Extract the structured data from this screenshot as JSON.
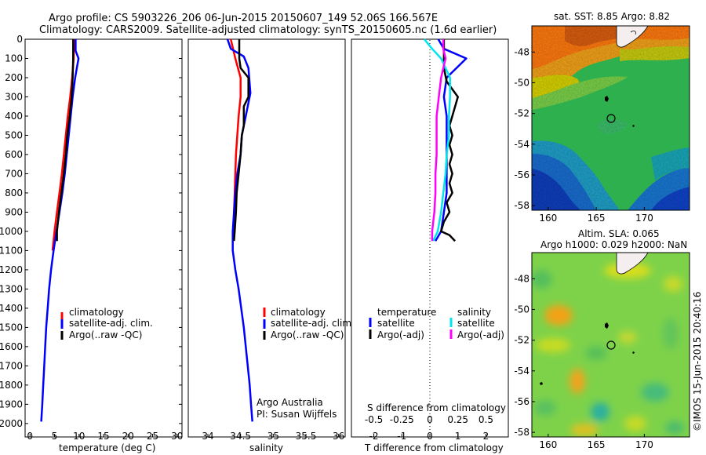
{
  "title": {
    "line1": "Argo profile: CS 5903226_206 06-Jun-2015 20150607_149 52.06S 166.567E",
    "line2": "Climatology: CARS2009. Satellite-adjusted climatology: synTS_20150605.nc (1.6d earlier)"
  },
  "colors": {
    "climatology": "#ff0000",
    "satellite": "#0000ff",
    "argo": "#000000",
    "sat_salinity": "#00e5ee",
    "argo_salinity": "#ff00ff"
  },
  "depth_axis": {
    "ticks": [
      "0",
      "100",
      "200",
      "300",
      "400",
      "500",
      "600",
      "700",
      "800",
      "900",
      "1000",
      "1100",
      "1200",
      "1300",
      "1400",
      "1500",
      "1600",
      "1700",
      "1800",
      "1900",
      "2000"
    ]
  },
  "chart_data": [
    {
      "type": "line",
      "xlabel": "temperature (deg C)",
      "ylabel": "",
      "xlim": [
        -1,
        31
      ],
      "ylim": [
        2070,
        0
      ],
      "xticks": [
        "0",
        "5",
        "10",
        "15",
        "20",
        "25",
        "30"
      ],
      "legend": [
        "climatology",
        "satellite-adj. clim.",
        "Argo(..raw -QC)"
      ],
      "series": [
        {
          "name": "climatology",
          "points": [
            [
              9.0,
              0
            ],
            [
              8.9,
              100
            ],
            [
              8.6,
              200
            ],
            [
              8.2,
              300
            ],
            [
              7.7,
              400
            ],
            [
              7.3,
              500
            ],
            [
              6.9,
              600
            ],
            [
              6.5,
              700
            ],
            [
              6.0,
              800
            ],
            [
              5.5,
              900
            ],
            [
              5.0,
              1000
            ],
            [
              4.6,
              1100
            ]
          ]
        },
        {
          "name": "satellite-adj. clim.",
          "points": [
            [
              9.3,
              0
            ],
            [
              9.3,
              60
            ],
            [
              9.9,
              100
            ],
            [
              9.2,
              200
            ],
            [
              8.7,
              300
            ],
            [
              8.3,
              400
            ],
            [
              7.9,
              500
            ],
            [
              7.5,
              600
            ],
            [
              7.1,
              700
            ],
            [
              6.6,
              800
            ],
            [
              6.0,
              900
            ],
            [
              5.4,
              1000
            ],
            [
              4.8,
              1100
            ],
            [
              4.3,
              1200
            ],
            [
              3.9,
              1300
            ],
            [
              3.6,
              1400
            ],
            [
              3.3,
              1500
            ],
            [
              3.1,
              1600
            ],
            [
              2.9,
              1700
            ],
            [
              2.7,
              1800
            ],
            [
              2.5,
              1900
            ],
            [
              2.3,
              1990
            ]
          ]
        },
        {
          "name": "Argo(..raw -QC)",
          "points": [
            [
              8.8,
              0
            ],
            [
              8.8,
              100
            ],
            [
              8.7,
              200
            ],
            [
              8.5,
              300
            ],
            [
              8.1,
              400
            ],
            [
              7.6,
              500
            ],
            [
              7.3,
              600
            ],
            [
              6.9,
              700
            ],
            [
              6.4,
              800
            ],
            [
              5.9,
              900
            ],
            [
              5.5,
              1000
            ],
            [
              5.5,
              1050
            ]
          ]
        }
      ]
    },
    {
      "type": "line",
      "xlabel": "salinity",
      "ylabel": "",
      "xlim": [
        33.7,
        36.1
      ],
      "ylim": [
        2070,
        0
      ],
      "xticks": [
        "34",
        "34.5",
        "35",
        "35.5",
        "36"
      ],
      "legend": [
        "climatology",
        "satellite-adj. clim.",
        "Argo(..raw -QC)"
      ],
      "annotation": [
        "Argo Australia",
        "PI: Susan Wijffels"
      ],
      "series": [
        {
          "name": "climatology",
          "points": [
            [
              34.35,
              0
            ],
            [
              34.42,
              100
            ],
            [
              34.5,
              200
            ],
            [
              34.5,
              300
            ],
            [
              34.47,
              400
            ],
            [
              34.45,
              500
            ],
            [
              34.43,
              600
            ],
            [
              34.42,
              700
            ],
            [
              34.41,
              800
            ],
            [
              34.4,
              900
            ],
            [
              34.4,
              1000
            ]
          ]
        },
        {
          "name": "satellite-adj. clim.",
          "points": [
            [
              34.3,
              0
            ],
            [
              34.35,
              50
            ],
            [
              34.55,
              90
            ],
            [
              34.62,
              150
            ],
            [
              34.65,
              280
            ],
            [
              34.58,
              400
            ],
            [
              34.52,
              500
            ],
            [
              34.5,
              600
            ],
            [
              34.45,
              700
            ],
            [
              34.42,
              800
            ],
            [
              34.4,
              900
            ],
            [
              34.38,
              1000
            ],
            [
              34.38,
              1100
            ],
            [
              34.42,
              1200
            ],
            [
              34.47,
              1300
            ],
            [
              34.51,
              1400
            ],
            [
              34.55,
              1500
            ],
            [
              34.58,
              1600
            ],
            [
              34.61,
              1700
            ],
            [
              34.64,
              1800
            ],
            [
              34.66,
              1900
            ],
            [
              34.68,
              1990
            ]
          ]
        },
        {
          "name": "Argo(..raw -QC)",
          "points": [
            [
              34.48,
              0
            ],
            [
              34.48,
              100
            ],
            [
              34.5,
              150
            ],
            [
              34.62,
              200
            ],
            [
              34.62,
              300
            ],
            [
              34.55,
              350
            ],
            [
              34.55,
              450
            ],
            [
              34.52,
              500
            ],
            [
              34.5,
              600
            ],
            [
              34.47,
              700
            ],
            [
              34.44,
              800
            ],
            [
              34.43,
              900
            ],
            [
              34.41,
              1000
            ],
            [
              34.4,
              1050
            ]
          ]
        }
      ]
    },
    {
      "type": "line",
      "xlabel": "T difference from climatology",
      "xlabel_top": "S difference from climatology",
      "ylabel": "",
      "xlim": [
        -2.8,
        2.8
      ],
      "ylim": [
        2070,
        0
      ],
      "xticks": [
        "-2",
        "-1",
        "0",
        "1",
        "2"
      ],
      "xticks_top": [
        "-0.5",
        "-0.25",
        "0",
        "0.25",
        "0.5"
      ],
      "legend_headers": [
        "temperature",
        "salinity"
      ],
      "legend": [
        "satellite",
        "Argo(-adj)",
        "satellite",
        "Argo(-adj)"
      ],
      "series": [
        {
          "name": "temperature satellite",
          "points": [
            [
              0.3,
              0
            ],
            [
              0.5,
              50
            ],
            [
              1.3,
              100
            ],
            [
              0.6,
              200
            ],
            [
              0.5,
              300
            ],
            [
              0.6,
              400
            ],
            [
              0.6,
              500
            ],
            [
              0.6,
              600
            ],
            [
              0.6,
              700
            ],
            [
              0.6,
              800
            ],
            [
              0.5,
              900
            ],
            [
              0.4,
              1000
            ],
            [
              0.2,
              1050
            ]
          ]
        },
        {
          "name": "temperature Argo(-adj)",
          "points": [
            [
              0.5,
              0
            ],
            [
              0.5,
              150
            ],
            [
              0.6,
              220
            ],
            [
              1.0,
              300
            ],
            [
              0.8,
              400
            ],
            [
              0.7,
              450
            ],
            [
              0.8,
              500
            ],
            [
              0.7,
              550
            ],
            [
              0.8,
              600
            ],
            [
              0.7,
              650
            ],
            [
              0.8,
              700
            ],
            [
              0.7,
              750
            ],
            [
              0.8,
              800
            ],
            [
              0.6,
              850
            ],
            [
              0.7,
              900
            ],
            [
              0.5,
              950
            ],
            [
              0.4,
              1000
            ],
            [
              0.7,
              1020
            ],
            [
              0.9,
              1050
            ]
          ]
        },
        {
          "name": "salinity satellite",
          "points": [
            [
              -0.05,
              0
            ],
            [
              0.02,
              50
            ],
            [
              0.1,
              100
            ],
            [
              0.18,
              200
            ],
            [
              0.18,
              300
            ],
            [
              0.17,
              400
            ],
            [
              0.17,
              500
            ],
            [
              0.15,
              600
            ],
            [
              0.14,
              700
            ],
            [
              0.12,
              800
            ],
            [
              0.1,
              900
            ],
            [
              0.07,
              1000
            ],
            [
              0.03,
              1050
            ]
          ]
        },
        {
          "name": "salinity Argo(-adj)",
          "points": [
            [
              0.12,
              0
            ],
            [
              0.12,
              50
            ],
            [
              0.14,
              100
            ],
            [
              0.1,
              200
            ],
            [
              0.08,
              300
            ],
            [
              0.06,
              400
            ],
            [
              0.06,
              500
            ],
            [
              0.06,
              600
            ],
            [
              0.05,
              700
            ],
            [
              0.05,
              800
            ],
            [
              0.04,
              900
            ],
            [
              0.02,
              1000
            ],
            [
              0.02,
              1050
            ]
          ]
        }
      ]
    },
    {
      "type": "heatmap",
      "title": "sat. SST: 8.85  Argo: 8.82",
      "xticks": [
        "160",
        "165",
        "170"
      ],
      "yticks": [
        "-48",
        "-50",
        "-52",
        "-54",
        "-56",
        "-58"
      ],
      "xlim": [
        158.3,
        174.7
      ],
      "ylim": [
        -58.3,
        -46.3
      ],
      "marker": {
        "lon": 166.567,
        "lat": -52.06
      }
    },
    {
      "type": "heatmap",
      "title": "Altim. SLA: 0.065",
      "subtitle": "Argo h1000: 0.029 h2000: NaN",
      "xticks": [
        "160",
        "165",
        "170"
      ],
      "yticks": [
        "-48",
        "-50",
        "-52",
        "-54",
        "-56",
        "-58"
      ],
      "xlim": [
        158.3,
        174.7
      ],
      "ylim": [
        -58.3,
        -46.3
      ],
      "marker": {
        "lon": 166.567,
        "lat": -52.06
      }
    }
  ],
  "credit": "©IMOS 15-Jun-2015 20:40:16"
}
